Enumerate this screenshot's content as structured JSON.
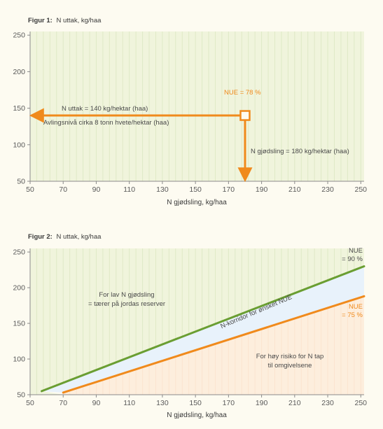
{
  "colors": {
    "orange": "#f08a1c",
    "green": "#6a9e32",
    "corridor": "#e8f2fb",
    "grid_green": "#dfe9c6",
    "grid_orange": "#fbe4cf",
    "background": "#fdfbf1"
  },
  "chart_data": [
    {
      "type": "line",
      "figure_label": "Figur 1:",
      "title": "N uttak, kg/haa",
      "xlabel": "N gjødsling, kg/haa",
      "ylabel": "",
      "xlim": [
        50,
        252
      ],
      "ylim": [
        50,
        255
      ],
      "xticks": [
        50,
        70,
        90,
        110,
        130,
        150,
        170,
        190,
        210,
        230,
        250
      ],
      "yticks": [
        50,
        100,
        150,
        200,
        250
      ],
      "grid": true,
      "point": {
        "x": 180,
        "y": 140
      },
      "annotations": {
        "nue": "NUE = 78 %",
        "uttak": "N uttak = 140 kg/hektar (haa)",
        "avling": "Avlingsnivå cirka 8 tonn hvete/hektar (haa)",
        "gjodsling": "N gjødsling = 180 kg/hektar (haa)"
      }
    },
    {
      "type": "line",
      "figure_label": "Figur 2:",
      "title": "N uttak, kg/haa",
      "xlabel": "N gjødsling, kg/haa",
      "ylabel": "",
      "xlim": [
        50,
        252
      ],
      "ylim": [
        50,
        255
      ],
      "xticks": [
        50,
        70,
        90,
        110,
        130,
        150,
        170,
        190,
        210,
        230,
        250
      ],
      "yticks": [
        50,
        100,
        150,
        200,
        250
      ],
      "grid": true,
      "series": [
        {
          "name": "NUE = 90 %",
          "x": [
            57,
            252
          ],
          "y": [
            55,
            230
          ]
        },
        {
          "name": "NUE = 75 %",
          "x": [
            70,
            252
          ],
          "y": [
            53,
            188
          ]
        }
      ],
      "annotations": {
        "nue90_a": "NUE",
        "nue90_b": "= 90 %",
        "nue75_a": "NUE",
        "nue75_b": "= 75 %",
        "low_a": "For lav N gjødsling",
        "low_b": "= tærer på jordas reserver",
        "corridor": "N-korridor for ønsket NUE",
        "high_a": "For høy risiko for N tap",
        "high_b": "til omgivelsene"
      }
    }
  ]
}
